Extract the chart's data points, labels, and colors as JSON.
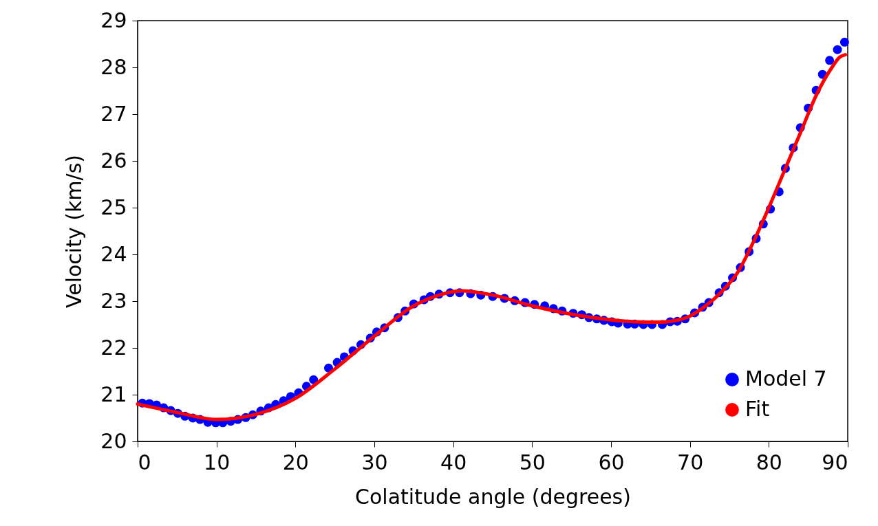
{
  "chart_data": {
    "type": "scatter",
    "xlabel": "Colatitude angle (degrees)",
    "ylabel": "Velocity (km/s)",
    "xlim": [
      0,
      90
    ],
    "ylim": [
      20,
      29
    ],
    "xticks": [
      0,
      10,
      20,
      30,
      40,
      50,
      60,
      70,
      80,
      90
    ],
    "yticks": [
      20,
      21,
      22,
      23,
      24,
      25,
      26,
      27,
      28,
      29
    ],
    "grid": false,
    "legend": "bottom right",
    "series": [
      {
        "name": "Model 7",
        "color": "#0000ff",
        "marker": "circle",
        "x": [
          0.6,
          1.5,
          2.4,
          3.3,
          4.2,
          5.1,
          6.0,
          7.0,
          7.9,
          8.9,
          9.9,
          10.8,
          11.8,
          12.7,
          13.7,
          14.6,
          15.6,
          16.6,
          17.5,
          18.5,
          19.4,
          20.4,
          21.4,
          22.3,
          24.2,
          25.3,
          26.2,
          27.3,
          28.3,
          29.5,
          30.3,
          31.3,
          33.0,
          33.9,
          35.0,
          36.3,
          37.1,
          38.2,
          39.6,
          40.8,
          42.2,
          43.5,
          45.0,
          46.5,
          47.8,
          49.1,
          50.3,
          51.6,
          52.7,
          53.8,
          55.2,
          56.3,
          57.2,
          58.2,
          59.1,
          60.1,
          60.9,
          62.1,
          63.0,
          64.1,
          65.2,
          66.5,
          67.5,
          68.4,
          69.4,
          70.6,
          71.6,
          72.4,
          73.7,
          74.5,
          75.4,
          76.4,
          77.5,
          78.4,
          79.3,
          80.2,
          81.3,
          82.1,
          83.1,
          84.0,
          85.0,
          86.0,
          86.8,
          87.7,
          88.7,
          89.6
        ],
        "values": [
          20.82,
          20.81,
          20.78,
          20.72,
          20.66,
          20.6,
          20.54,
          20.5,
          20.47,
          20.41,
          20.4,
          20.4,
          20.43,
          20.47,
          20.51,
          20.57,
          20.65,
          20.72,
          20.79,
          20.87,
          20.96,
          21.04,
          21.18,
          21.32,
          21.57,
          21.69,
          21.81,
          21.94,
          22.07,
          22.21,
          22.34,
          22.43,
          22.65,
          22.79,
          22.94,
          23.03,
          23.1,
          23.15,
          23.18,
          23.18,
          23.16,
          23.13,
          23.1,
          23.06,
          23.01,
          22.97,
          22.93,
          22.9,
          22.84,
          22.79,
          22.74,
          22.71,
          22.65,
          22.62,
          22.59,
          22.56,
          22.53,
          22.51,
          22.51,
          22.5,
          22.5,
          22.5,
          22.56,
          22.57,
          22.62,
          22.75,
          22.87,
          22.97,
          23.18,
          23.32,
          23.5,
          23.72,
          24.06,
          24.34,
          24.65,
          24.97,
          25.34,
          25.84,
          26.28,
          26.71,
          27.13,
          27.51,
          27.85,
          28.15,
          28.38,
          28.54
        ]
      },
      {
        "name": "Fit",
        "color": "#ff0000",
        "type": "line",
        "marker": "none",
        "line_style": "solid",
        "x": [
          0,
          5,
          10,
          15,
          20,
          25,
          30,
          35,
          38,
          41,
          45,
          50,
          55,
          60,
          63,
          66,
          68,
          70,
          72,
          74,
          76,
          78,
          80,
          82,
          84,
          86,
          88,
          89,
          89.7
        ],
        "values": [
          20.8,
          20.62,
          20.47,
          20.58,
          20.92,
          21.55,
          22.25,
          22.9,
          23.12,
          23.22,
          23.13,
          22.9,
          22.72,
          22.6,
          22.56,
          22.55,
          22.58,
          22.68,
          22.9,
          23.2,
          23.6,
          24.25,
          25.0,
          25.8,
          26.6,
          27.4,
          28.0,
          28.22,
          28.27
        ]
      }
    ]
  }
}
